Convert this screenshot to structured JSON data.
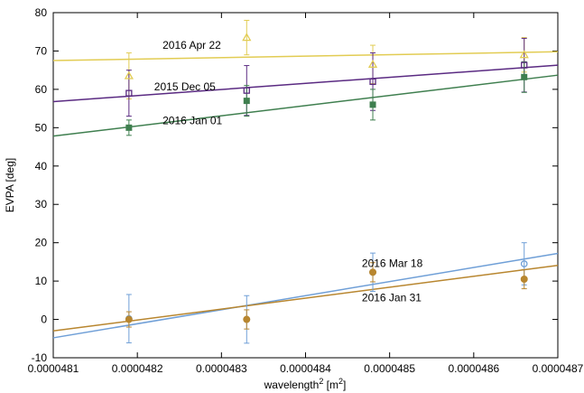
{
  "chart_data": {
    "type": "scatter",
    "xlabel": "wavelength",
    "xlabel_sup1": "2",
    "xlabel_unit_open": " [m",
    "xlabel_sup2": "2",
    "xlabel_unit_close": "]",
    "ylabel": "EVPA [deg]",
    "xlim": [
      4.81e-05,
      4.87e-05
    ],
    "ylim": [
      -10,
      80
    ],
    "xticks": [
      "0.0000481",
      "0.0000482",
      "0.0000483",
      "0.0000484",
      "0.0000485",
      "0.0000486",
      "0.0000487"
    ],
    "xtick_values": [
      4.81e-05,
      4.82e-05,
      4.83e-05,
      4.84e-05,
      4.85e-05,
      4.86e-05,
      4.87e-05
    ],
    "yticks": [
      "-10",
      "0",
      "10",
      "20",
      "30",
      "40",
      "50",
      "60",
      "70",
      "80"
    ],
    "ytick_values": [
      -10,
      0,
      10,
      20,
      30,
      40,
      50,
      60,
      70,
      80
    ],
    "grid": false,
    "series": [
      {
        "name": "2016 Apr 22",
        "color": "#e2cc53",
        "marker": "triangle-open",
        "points": [
          {
            "x": 4.819e-05,
            "y": 63.5,
            "err": 6
          },
          {
            "x": 4.833e-05,
            "y": 73.5,
            "err": 4.5
          },
          {
            "x": 4.848e-05,
            "y": 66.5,
            "err": 5
          },
          {
            "x": 4.866e-05,
            "y": 69,
            "err": 4.5
          }
        ],
        "fit": [
          [
            4.81e-05,
            67.5
          ],
          [
            4.87e-05,
            69.8
          ]
        ],
        "label_at": [
          4.823e-05,
          71.5
        ]
      },
      {
        "name": "2015 Dec 05",
        "color": "#5a2a82",
        "marker": "square-open",
        "points": [
          {
            "x": 4.819e-05,
            "y": 59,
            "err": 6
          },
          {
            "x": 4.833e-05,
            "y": 59.7,
            "err": 6.5
          },
          {
            "x": 4.848e-05,
            "y": 62,
            "err": 7.5
          },
          {
            "x": 4.866e-05,
            "y": 66.3,
            "err": 7
          }
        ],
        "fit": [
          [
            4.81e-05,
            56.8
          ],
          [
            4.87e-05,
            66.3
          ]
        ],
        "label_at": [
          4.822e-05,
          60.7
        ]
      },
      {
        "name": "2016 Jan 01",
        "color": "#3f7f4f",
        "marker": "square-filled",
        "points": [
          {
            "x": 4.819e-05,
            "y": 50,
            "err": 2
          },
          {
            "x": 4.833e-05,
            "y": 57,
            "err": 4
          },
          {
            "x": 4.848e-05,
            "y": 56,
            "err": 4
          },
          {
            "x": 4.866e-05,
            "y": 63.2,
            "err": 4
          }
        ],
        "fit": [
          [
            4.81e-05,
            47.8
          ],
          [
            4.87e-05,
            63.7
          ]
        ],
        "label_at": [
          4.823e-05,
          51.8
        ]
      },
      {
        "name": "2016 Mar 18",
        "color": "#6f9fd7",
        "marker": "circle-open",
        "points": [
          {
            "x": 4.819e-05,
            "y": 0.2,
            "err": 6.3
          },
          {
            "x": 4.833e-05,
            "y": 0,
            "err": 6.2
          },
          {
            "x": 4.848e-05,
            "y": 12.3,
            "err": 5
          },
          {
            "x": 4.866e-05,
            "y": 14.5,
            "err": 5.5
          }
        ],
        "fit": [
          [
            4.81e-05,
            -4.8
          ],
          [
            4.87e-05,
            17.2
          ]
        ],
        "label_at": [
          4.8467e-05,
          14.6
        ]
      },
      {
        "name": "2016 Jan 31",
        "color": "#b8862f",
        "marker": "circle-filled",
        "points": [
          {
            "x": 4.819e-05,
            "y": 0,
            "err": 2
          },
          {
            "x": 4.833e-05,
            "y": 0,
            "err": 2.5
          },
          {
            "x": 4.848e-05,
            "y": 12.3,
            "err": 2.5
          },
          {
            "x": 4.866e-05,
            "y": 10.5,
            "err": 2.5
          }
        ],
        "fit": [
          [
            4.81e-05,
            -3
          ],
          [
            4.87e-05,
            14.1
          ]
        ],
        "label_at": [
          4.8467e-05,
          5.7
        ]
      }
    ]
  }
}
